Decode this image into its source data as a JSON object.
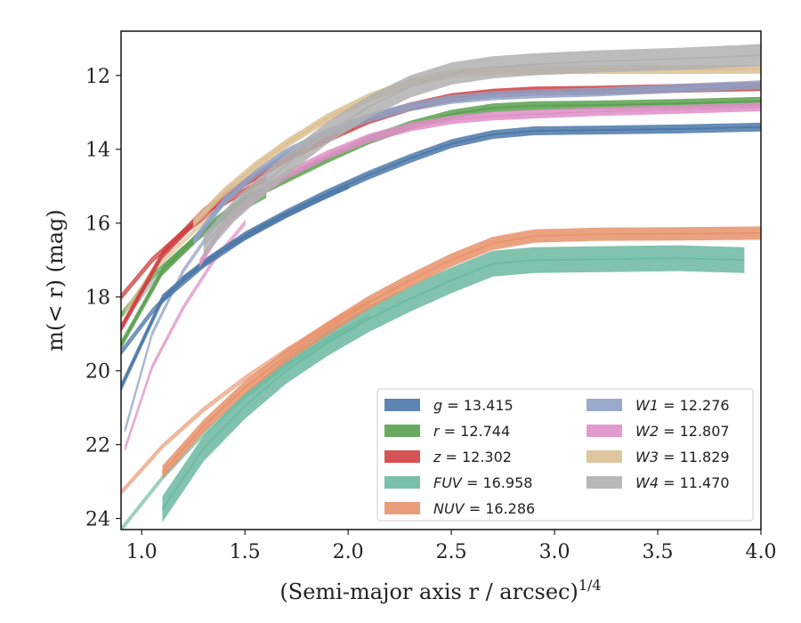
{
  "chart_data": {
    "type": "line",
    "xlabel": "(Semi-major axis r / arcsec)",
    "xlabel_sup": "1/4",
    "ylabel": "m(< r) (mag)",
    "xlim": [
      0.9,
      4.0
    ],
    "ylim": [
      24.3,
      10.8
    ],
    "y_inverted": true,
    "x_ticks": [
      1.0,
      1.5,
      2.0,
      2.5,
      3.0,
      3.5,
      4.0
    ],
    "x_tick_labels": [
      "1.0",
      "1.5",
      "2.0",
      "2.5",
      "3.0",
      "3.5",
      "4.0"
    ],
    "y_ticks": [
      12,
      14,
      16,
      18,
      20,
      22,
      24
    ],
    "y_tick_labels": [
      "12",
      "14",
      "16",
      "18",
      "20",
      "22",
      "24"
    ],
    "grid": false,
    "legend_position": "lower-right",
    "series": [
      {
        "name": "g",
        "value": "13.415",
        "legend_label": "g = 13.415",
        "color": "#4c78a8",
        "band": 0.12,
        "x": [
          0.9,
          1.1,
          1.3,
          1.5,
          1.7,
          1.9,
          2.1,
          2.3,
          2.5,
          2.7,
          2.9,
          3.2,
          3.6,
          4.0
        ],
        "y": [
          20.45,
          18.05,
          17.1,
          16.35,
          15.75,
          15.2,
          14.7,
          14.25,
          13.85,
          13.6,
          13.5,
          13.48,
          13.45,
          13.4
        ]
      },
      {
        "name": "r",
        "value": "12.744",
        "legend_label": "r = 12.744",
        "color": "#59a14f",
        "band": 0.12,
        "x": [
          0.9,
          1.1,
          1.3,
          1.5,
          1.7,
          1.9,
          2.1,
          2.3,
          2.5,
          2.7,
          2.9,
          3.2,
          3.6,
          4.0
        ],
        "y": [
          19.3,
          17.3,
          16.2,
          15.35,
          14.8,
          14.25,
          13.75,
          13.35,
          13.05,
          12.88,
          12.82,
          12.8,
          12.76,
          12.7
        ]
      },
      {
        "name": "z",
        "value": "12.302",
        "legend_label": "z = 12.302",
        "color": "#d04040",
        "band": 0.12,
        "x": [
          0.9,
          1.1,
          1.3,
          1.5,
          1.7,
          1.9,
          2.1,
          2.3,
          2.5,
          2.7,
          2.9,
          3.2,
          3.6,
          4.0
        ],
        "y": [
          18.85,
          16.85,
          15.7,
          14.9,
          14.25,
          13.7,
          13.2,
          12.85,
          12.6,
          12.48,
          12.42,
          12.4,
          12.35,
          12.3
        ]
      },
      {
        "name": "FUV",
        "value": "16.958",
        "legend_label": "FUV = 16.958",
        "color": "#6bb8a0",
        "band": 0.35,
        "x": [
          1.1,
          1.3,
          1.5,
          1.7,
          1.9,
          2.1,
          2.3,
          2.5,
          2.7,
          2.9,
          3.2,
          3.6,
          3.92
        ],
        "y": [
          23.75,
          22.1,
          20.95,
          20.0,
          19.25,
          18.6,
          18.05,
          17.55,
          17.1,
          17.0,
          16.98,
          16.95,
          17.0
        ]
      },
      {
        "name": "NUV",
        "value": "16.286",
        "legend_label": "NUV = 16.286",
        "color": "#e8926a",
        "band": 0.18,
        "x": [
          1.1,
          1.3,
          1.5,
          1.7,
          1.9,
          2.1,
          2.3,
          2.5,
          2.7,
          2.9,
          3.2,
          3.6,
          4.0
        ],
        "y": [
          22.75,
          21.5,
          20.45,
          19.6,
          18.85,
          18.15,
          17.55,
          17.0,
          16.55,
          16.35,
          16.3,
          16.29,
          16.27
        ]
      },
      {
        "name": "W1",
        "value": "12.276",
        "legend_label": "W1 = 12.276",
        "color": "#8fa1c6",
        "band": 0.12,
        "x": [
          1.25,
          1.4,
          1.55,
          1.7,
          1.9,
          2.1,
          2.3,
          2.5,
          2.7,
          2.9,
          3.2,
          3.6,
          4.0
        ],
        "y": [
          16.5,
          15.4,
          14.65,
          14.1,
          13.55,
          13.15,
          12.85,
          12.65,
          12.55,
          12.5,
          12.45,
          12.35,
          12.25
        ]
      },
      {
        "name": "W2",
        "value": "12.807",
        "legend_label": "W2 = 12.807",
        "color": "#de8fc6",
        "band": 0.12,
        "x": [
          1.28,
          1.4,
          1.55,
          1.7,
          1.9,
          2.1,
          2.3,
          2.5,
          2.7,
          2.9,
          3.2,
          3.6,
          4.0
        ],
        "y": [
          17.1,
          16.05,
          15.25,
          14.7,
          14.15,
          13.7,
          13.4,
          13.2,
          13.1,
          13.05,
          12.98,
          12.92,
          12.85
        ]
      },
      {
        "name": "W3",
        "value": "11.829",
        "legend_label": "W3 = 11.829",
        "color": "#dcc093",
        "band": 0.12,
        "x": [
          1.25,
          1.4,
          1.55,
          1.7,
          1.9,
          2.1,
          2.3,
          2.5,
          2.7,
          2.9,
          3.2,
          3.6,
          4.0
        ],
        "y": [
          16.0,
          15.15,
          14.45,
          13.85,
          13.15,
          12.6,
          12.2,
          11.95,
          11.87,
          11.85,
          11.84,
          11.84,
          11.83
        ]
      },
      {
        "name": "W4",
        "value": "11.470",
        "legend_label": "W4 = 11.470",
        "color": "#b0b0b0",
        "band": 0.3,
        "x": [
          1.3,
          1.45,
          1.6,
          1.75,
          1.9,
          2.1,
          2.3,
          2.5,
          2.7,
          2.9,
          3.2,
          3.6,
          4.0
        ],
        "y": [
          16.6,
          15.65,
          14.9,
          14.2,
          13.55,
          12.85,
          12.3,
          11.95,
          11.78,
          11.7,
          11.62,
          11.55,
          11.45
        ]
      }
    ],
    "extra_traces": [
      {
        "color": "#4c78a8",
        "band": 0.06,
        "opacity": 0.7,
        "x": [
          0.9,
          1.05,
          1.2,
          1.4,
          1.6,
          1.8,
          2.0
        ],
        "y": [
          19.5,
          18.4,
          17.5,
          16.7,
          16.05,
          15.5,
          15.0
        ]
      },
      {
        "color": "#59a14f",
        "band": 0.06,
        "opacity": 0.7,
        "x": [
          0.9,
          1.05,
          1.2,
          1.4,
          1.6
        ],
        "y": [
          18.5,
          17.45,
          16.7,
          15.85,
          15.25
        ]
      },
      {
        "color": "#d04040",
        "band": 0.06,
        "opacity": 0.7,
        "x": [
          0.9,
          1.05,
          1.2,
          1.4,
          1.6
        ],
        "y": [
          18.0,
          17.0,
          16.25,
          15.45,
          14.8
        ]
      },
      {
        "color": "#6bb8a0",
        "band": 0.05,
        "opacity": 0.55,
        "x": [
          0.9,
          1.1,
          1.3,
          1.5,
          1.7,
          1.9,
          2.1
        ],
        "y": [
          24.3,
          22.9,
          21.7,
          20.7,
          19.85,
          19.15,
          18.55
        ]
      },
      {
        "color": "#e8926a",
        "band": 0.05,
        "opacity": 0.55,
        "x": [
          0.9,
          1.1,
          1.3,
          1.5,
          1.7,
          1.9,
          2.1
        ],
        "y": [
          23.3,
          22.05,
          21.05,
          20.2,
          19.45,
          18.75,
          18.15
        ]
      },
      {
        "color": "#8fa1c6",
        "band": 0.05,
        "opacity": 0.6,
        "x": [
          0.92,
          1.05,
          1.2,
          1.35,
          1.5
        ],
        "y": [
          21.6,
          19.0,
          17.3,
          16.1,
          15.3
        ]
      },
      {
        "color": "#de8fc6",
        "band": 0.05,
        "opacity": 0.6,
        "x": [
          0.92,
          1.05,
          1.2,
          1.35,
          1.5
        ],
        "y": [
          22.1,
          19.9,
          18.3,
          17.0,
          16.0
        ]
      },
      {
        "color": "#dcc093",
        "band": 0.05,
        "opacity": 0.6,
        "x": [
          0.92,
          1.05,
          1.2,
          1.35
        ],
        "y": [
          18.4,
          17.3,
          16.5,
          15.7
        ]
      },
      {
        "color": "#b0b0b0",
        "band": 0.05,
        "opacity": 0.6,
        "x": [
          0.92,
          1.05,
          1.2,
          1.35
        ],
        "y": [
          18.6,
          17.6,
          16.8,
          16.0
        ]
      }
    ]
  }
}
